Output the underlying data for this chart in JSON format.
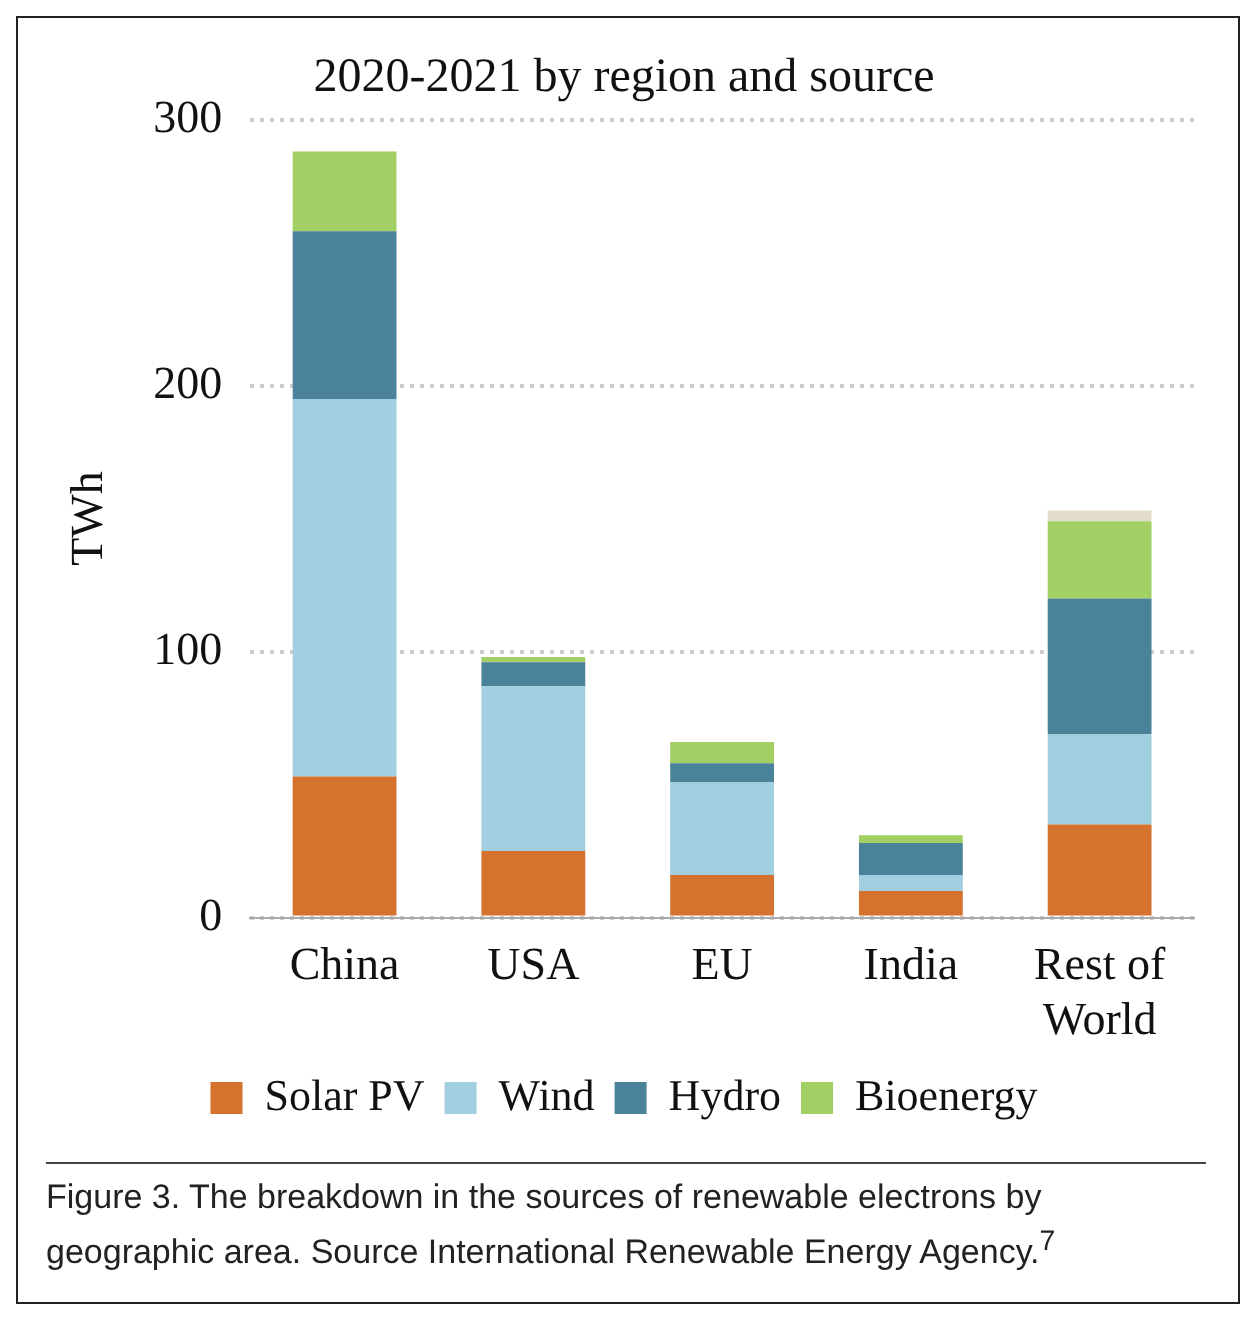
{
  "chart_data": {
    "type": "bar",
    "title": "2020-2021 by region and source",
    "ylabel": "TWh",
    "categories": [
      "China",
      "USA",
      "EU",
      "India",
      "Rest of\nWorld"
    ],
    "stacked": true,
    "series": [
      {
        "name": "Solar PV",
        "color": "#d4722e",
        "values": [
          53,
          25,
          16,
          10,
          35
        ]
      },
      {
        "name": "Wind",
        "color": "#a2cfdf",
        "values": [
          142,
          62,
          35,
          6,
          34
        ]
      },
      {
        "name": "Hydro",
        "color": "#4a8299",
        "values": [
          63,
          9,
          7,
          12,
          51
        ]
      },
      {
        "name": "Bioenergy",
        "color": "#a2d064",
        "values": [
          30,
          2,
          8,
          3,
          29
        ]
      },
      {
        "color": "#e3dccb",
        "values": [
          null,
          null,
          null,
          null,
          4
        ]
      }
    ],
    "ylim": [
      0,
      300
    ],
    "yticks": [
      0,
      100,
      200,
      300
    ],
    "grid": "y",
    "legend": "bottom",
    "annotations": [
      "Figure 3.  The breakdown in the sources of renewable electrons by geographic area. Source International Renewable Energy Agency.$^{7}$"
    ]
  }
}
